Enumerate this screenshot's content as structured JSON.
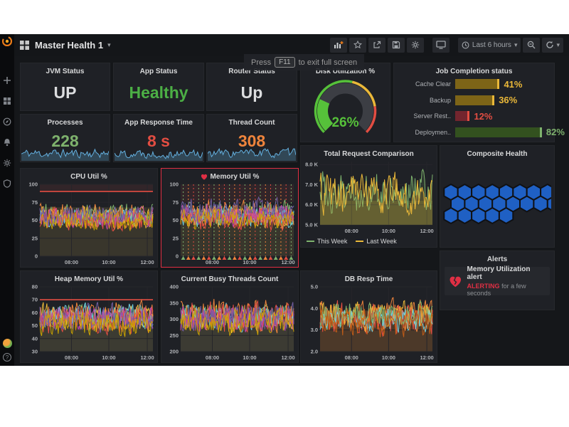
{
  "page": {
    "fullscreen_notice": {
      "prefix": "Press",
      "key": "F11",
      "suffix": "to exit full screen"
    }
  },
  "sidebar": {
    "icons": [
      "grafana-logo",
      "add",
      "dashboards",
      "explore",
      "alerting",
      "configuration",
      "server-admin"
    ],
    "help_label": "?"
  },
  "topbar": {
    "dashboard_title": "Master Health 1",
    "time_picker_label": "Last 6 hours",
    "icons": [
      "apps-grid",
      "add-panel",
      "star",
      "share",
      "save",
      "settings",
      "cycle-view",
      "clock",
      "zoom-out",
      "refresh"
    ]
  },
  "singlestats": {
    "jvm_status": {
      "title": "JVM Status",
      "value": "UP",
      "value_color": "#dcdddf"
    },
    "app_status": {
      "title": "App Status",
      "value": "Healthy",
      "value_color": "#4caf45"
    },
    "router_status": {
      "title": "Router Status",
      "value": "Up",
      "value_color": "#dcdddf"
    },
    "processes": {
      "title": "Processes",
      "value": "228",
      "value_color": "#7eb26d",
      "sparkline_color": "#64b0df",
      "seed": 11
    },
    "app_response_time": {
      "title": "App Response Time",
      "value": "8 s",
      "value_color": "#e24d42",
      "sparkline_color": "#64b0df",
      "seed": 22
    },
    "thread_count": {
      "title": "Thread Count",
      "value": "308",
      "value_color": "#ef843c",
      "sparkline_color": "#64b0df",
      "seed": 33
    }
  },
  "gauge": {
    "title": "Disk Utilization %",
    "value_label": "26%",
    "percent": 26,
    "value_color": "#56c13a",
    "track_color": "#3c3e44",
    "thresholds": [
      {
        "to": 55,
        "color": "#56c13a"
      },
      {
        "to": 80,
        "color": "#eab839"
      },
      {
        "to": 100,
        "color": "#e24d42"
      }
    ]
  },
  "job_completion": {
    "title": "Job Completion status",
    "rows": [
      {
        "label": "Cache Clear",
        "percent": 41,
        "display": "41%",
        "bar_color": "#7d6417",
        "accent": "#eab839"
      },
      {
        "label": "Backup",
        "percent": 36,
        "display": "36%",
        "bar_color": "#7d6417",
        "accent": "#eab839"
      },
      {
        "label": "Server Rest..",
        "percent": 12,
        "display": "12%",
        "bar_color": "#73252e",
        "accent": "#e24d42"
      },
      {
        "label": "Deploymen..",
        "percent": 82,
        "display": "82%",
        "bar_color": "#33511f",
        "accent": "#7eb26d"
      }
    ]
  },
  "composite_health": {
    "title": "Composite Health",
    "hex_fill": "#1f60c4",
    "hex_stroke": "#101114",
    "rows": [
      {
        "count": 8,
        "offset": 0
      },
      {
        "count": 8,
        "offset": 0.5
      },
      {
        "count": 5,
        "offset": 0
      }
    ]
  },
  "alerts": {
    "title": "Alerts",
    "items": [
      {
        "icon": "heart-break",
        "name": "Memory Utilization alert",
        "state": "ALERTING",
        "state_color": "#e02f44",
        "duration": "for a few seconds"
      }
    ]
  },
  "chart_data": [
    {
      "key": "cpu_util",
      "type": "line",
      "title": "CPU Util %",
      "ylim": [
        0,
        100
      ],
      "yticks": [
        {
          "v": 100,
          "label": "100"
        },
        {
          "v": 75,
          "label": "75"
        },
        {
          "v": 50,
          "label": "50"
        },
        {
          "v": 25,
          "label": "25"
        },
        {
          "v": 0,
          "label": "0"
        }
      ],
      "xticks": [
        {
          "f": 0.28,
          "label": "08:00"
        },
        {
          "f": 0.61,
          "label": "10:00"
        },
        {
          "f": 0.95,
          "label": "12:00"
        }
      ],
      "threshold": {
        "value": 90,
        "color": "#e24d42"
      },
      "bands": [
        {
          "from": 0,
          "to": 68,
          "color": "rgba(125,110,60,0.28)"
        },
        {
          "from": 90,
          "to": 100,
          "color": "rgba(226,77,66,0.10)"
        }
      ],
      "series": [
        {
          "color": "#7eb26d",
          "min": 40,
          "max": 78,
          "seed": 101
        },
        {
          "color": "#eab839",
          "min": 34,
          "max": 72,
          "seed": 102
        },
        {
          "color": "#6ed0e0",
          "min": 38,
          "max": 70,
          "seed": 103
        },
        {
          "color": "#ef843c",
          "min": 35,
          "max": 76,
          "seed": 104
        },
        {
          "color": "#e24d42",
          "min": 33,
          "max": 68,
          "seed": 105
        },
        {
          "color": "#ba43a9",
          "min": 36,
          "max": 71,
          "seed": 106
        },
        {
          "color": "#705da0",
          "min": 38,
          "max": 73,
          "seed": 107
        },
        {
          "color": "#cca300",
          "min": 33,
          "max": 66,
          "seed": 108
        }
      ]
    },
    {
      "key": "memory_util",
      "type": "line",
      "title": "Memory Util %",
      "alerting": true,
      "ylim": [
        0,
        100
      ],
      "yticks": [
        {
          "v": 100,
          "label": "100"
        },
        {
          "v": 75,
          "label": "75"
        },
        {
          "v": 50,
          "label": "50"
        },
        {
          "v": 25,
          "label": "25"
        },
        {
          "v": 0,
          "label": "0"
        }
      ],
      "xticks": [
        {
          "f": 0.28,
          "label": "08:00"
        },
        {
          "f": 0.61,
          "label": "10:00"
        },
        {
          "f": 0.95,
          "label": "12:00"
        }
      ],
      "bands": [
        {
          "from": 0,
          "to": 65,
          "color": "rgba(125,110,60,0.28)"
        },
        {
          "from": 75,
          "to": 100,
          "color": "rgba(226,77,66,0.10)"
        }
      ],
      "annotations": {
        "count": 22,
        "colors": [
          "#7eb26d",
          "#ef843c",
          "#e24d42"
        ]
      },
      "series": [
        {
          "color": "#7eb26d",
          "min": 42,
          "max": 80,
          "seed": 201
        },
        {
          "color": "#eab839",
          "min": 35,
          "max": 74,
          "seed": 202
        },
        {
          "color": "#6ed0e0",
          "min": 38,
          "max": 72,
          "seed": 203
        },
        {
          "color": "#ef843c",
          "min": 36,
          "max": 82,
          "seed": 204
        },
        {
          "color": "#e24d42",
          "min": 33,
          "max": 70,
          "seed": 205
        },
        {
          "color": "#ba43a9",
          "min": 37,
          "max": 75,
          "seed": 206
        },
        {
          "color": "#705da0",
          "min": 40,
          "max": 85,
          "seed": 207
        },
        {
          "color": "#cca300",
          "min": 34,
          "max": 68,
          "seed": 208
        }
      ]
    },
    {
      "key": "total_request",
      "type": "line",
      "title": "Total Request Comparison",
      "ylim": [
        5000,
        8150
      ],
      "yticks": [
        {
          "v": 8000,
          "label": "8.0 K"
        },
        {
          "v": 7000,
          "label": "7.0 K"
        },
        {
          "v": 6000,
          "label": "6.0 K"
        },
        {
          "v": 5000,
          "label": "5.0 K"
        }
      ],
      "xticks": [
        {
          "f": 0.28,
          "label": "08:00"
        },
        {
          "f": 0.61,
          "label": "10:00"
        },
        {
          "f": 0.95,
          "label": "12:00"
        }
      ],
      "bands": [
        {
          "from": 5000,
          "to": 6200,
          "color": "rgba(140,130,45,0.30)"
        }
      ],
      "legend_position": "bottom",
      "series": [
        {
          "name": "This Week",
          "color": "#7eb26d",
          "min": 5400,
          "max": 7900,
          "seed": 301,
          "fill": "rgba(126,178,109,0.14)"
        },
        {
          "name": "Last Week",
          "color": "#eab839",
          "min": 5300,
          "max": 7800,
          "seed": 302,
          "fill": "rgba(234,184,57,0.18)"
        }
      ]
    },
    {
      "key": "heap_memory",
      "type": "line",
      "title": "Heap Memory Util %",
      "ylim": [
        30,
        80
      ],
      "yticks": [
        {
          "v": 80,
          "label": "80"
        },
        {
          "v": 70,
          "label": "70"
        },
        {
          "v": 60,
          "label": "60"
        },
        {
          "v": 50,
          "label": "50"
        },
        {
          "v": 40,
          "label": "40"
        },
        {
          "v": 30,
          "label": "30"
        }
      ],
      "xticks": [
        {
          "f": 0.28,
          "label": "08:00"
        },
        {
          "f": 0.61,
          "label": "10:00"
        },
        {
          "f": 0.95,
          "label": "12:00"
        }
      ],
      "threshold": {
        "value": 70,
        "color": "#e24d42"
      },
      "bands": [
        {
          "from": 30,
          "to": 58,
          "color": "rgba(130,118,80,0.30)"
        }
      ],
      "series": [
        {
          "color": "#7eb26d",
          "min": 44,
          "max": 68,
          "seed": 401
        },
        {
          "color": "#eab839",
          "min": 42,
          "max": 70,
          "seed": 402
        },
        {
          "color": "#6ed0e0",
          "min": 45,
          "max": 69,
          "seed": 403
        },
        {
          "color": "#ef843c",
          "min": 43,
          "max": 71,
          "seed": 404
        },
        {
          "color": "#e24d42",
          "min": 41,
          "max": 66,
          "seed": 405
        },
        {
          "color": "#ba43a9",
          "min": 44,
          "max": 67,
          "seed": 406
        },
        {
          "color": "#705da0",
          "min": 42,
          "max": 69,
          "seed": 407
        },
        {
          "color": "#cca300",
          "min": 40,
          "max": 64,
          "seed": 408
        }
      ]
    },
    {
      "key": "busy_threads",
      "type": "line",
      "title": "Current Busy Threads Count",
      "ylim": [
        200,
        400
      ],
      "yticks": [
        {
          "v": 400,
          "label": "400"
        },
        {
          "v": 350,
          "label": "350"
        },
        {
          "v": 300,
          "label": "300"
        },
        {
          "v": 250,
          "label": "250"
        },
        {
          "v": 200,
          "label": "200"
        }
      ],
      "xticks": [
        {
          "f": 0.28,
          "label": "08:00"
        },
        {
          "f": 0.61,
          "label": "10:00"
        },
        {
          "f": 0.95,
          "label": "12:00"
        }
      ],
      "bands": [
        {
          "from": 200,
          "to": 300,
          "color": "rgba(128,118,82,0.30)"
        }
      ],
      "series": [
        {
          "color": "#7eb26d",
          "min": 255,
          "max": 360,
          "seed": 501
        },
        {
          "color": "#eab839",
          "min": 250,
          "max": 345,
          "seed": 502
        },
        {
          "color": "#6ed0e0",
          "min": 255,
          "max": 355,
          "seed": 503
        },
        {
          "color": "#ef843c",
          "min": 250,
          "max": 375,
          "seed": 504
        },
        {
          "color": "#e24d42",
          "min": 245,
          "max": 365,
          "seed": 505
        },
        {
          "color": "#ba43a9",
          "min": 250,
          "max": 350,
          "seed": 506
        },
        {
          "color": "#705da0",
          "min": 248,
          "max": 358,
          "seed": 507
        },
        {
          "color": "#cca300",
          "min": 242,
          "max": 340,
          "seed": 508
        }
      ]
    },
    {
      "key": "db_resp",
      "type": "line",
      "title": "DB Resp Time",
      "ylim": [
        2,
        5
      ],
      "yticks": [
        {
          "v": 5,
          "label": "5.0"
        },
        {
          "v": 4,
          "label": "4.0"
        },
        {
          "v": 3,
          "label": "3.0"
        },
        {
          "v": 2,
          "label": "2.0"
        }
      ],
      "xticks": [
        {
          "f": 0.28,
          "label": "08:00"
        },
        {
          "f": 0.61,
          "label": "10:00"
        },
        {
          "f": 0.95,
          "label": "12:00"
        }
      ],
      "bands": [
        {
          "from": 2,
          "to": 3.9,
          "color": "rgba(170,110,50,0.32)"
        }
      ],
      "series": [
        {
          "color": "#ef843c",
          "min": 2.8,
          "max": 4.6,
          "seed": 601
        },
        {
          "color": "#e24d42",
          "min": 2.6,
          "max": 4.5,
          "seed": 602
        },
        {
          "color": "#eab839",
          "min": 2.8,
          "max": 4.5,
          "seed": 603
        },
        {
          "color": "#6ed0e0",
          "min": 2.7,
          "max": 4.2,
          "seed": 604
        },
        {
          "color": "#7eb26d",
          "min": 3.0,
          "max": 4.4,
          "seed": 605
        },
        {
          "color": "#c15c17",
          "min": 2.5,
          "max": 4.3,
          "seed": 606
        }
      ]
    }
  ]
}
